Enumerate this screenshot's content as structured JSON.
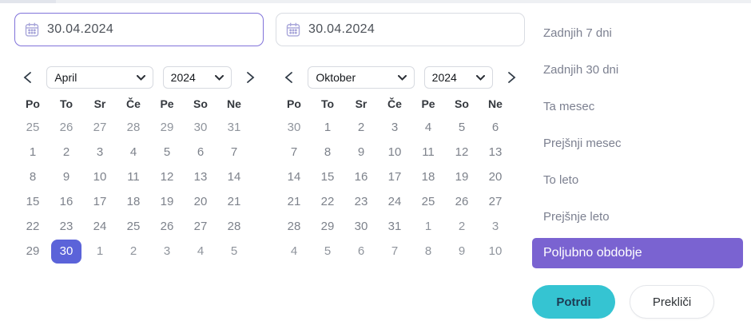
{
  "date_inputs": {
    "start": {
      "value": "30.04.2024",
      "focused": true
    },
    "end": {
      "value": "30.04.2024",
      "focused": false
    }
  },
  "calendars": [
    {
      "month": "April",
      "year": "2024",
      "weekdays": [
        "Po",
        "To",
        "Sr",
        "Če",
        "Pe",
        "So",
        "Ne"
      ],
      "weeks": [
        [
          {
            "d": "25",
            "out": true
          },
          {
            "d": "26",
            "out": true
          },
          {
            "d": "27",
            "out": true
          },
          {
            "d": "28",
            "out": true
          },
          {
            "d": "29",
            "out": true
          },
          {
            "d": "30",
            "out": true
          },
          {
            "d": "31",
            "out": true
          }
        ],
        [
          {
            "d": "1"
          },
          {
            "d": "2"
          },
          {
            "d": "3"
          },
          {
            "d": "4"
          },
          {
            "d": "5"
          },
          {
            "d": "6"
          },
          {
            "d": "7"
          }
        ],
        [
          {
            "d": "8"
          },
          {
            "d": "9"
          },
          {
            "d": "10"
          },
          {
            "d": "11"
          },
          {
            "d": "12"
          },
          {
            "d": "13"
          },
          {
            "d": "14"
          }
        ],
        [
          {
            "d": "15"
          },
          {
            "d": "16"
          },
          {
            "d": "17"
          },
          {
            "d": "18"
          },
          {
            "d": "19"
          },
          {
            "d": "20"
          },
          {
            "d": "21"
          }
        ],
        [
          {
            "d": "22"
          },
          {
            "d": "23"
          },
          {
            "d": "24"
          },
          {
            "d": "25"
          },
          {
            "d": "26"
          },
          {
            "d": "27"
          },
          {
            "d": "28"
          }
        ],
        [
          {
            "d": "29"
          },
          {
            "d": "30",
            "selected": true
          },
          {
            "d": "1",
            "out": true
          },
          {
            "d": "2",
            "out": true
          },
          {
            "d": "3",
            "out": true
          },
          {
            "d": "4",
            "out": true
          },
          {
            "d": "5",
            "out": true
          }
        ]
      ]
    },
    {
      "month": "Oktober",
      "year": "2024",
      "weekdays": [
        "Po",
        "To",
        "Sr",
        "Če",
        "Pe",
        "So",
        "Ne"
      ],
      "weeks": [
        [
          {
            "d": "30",
            "out": true
          },
          {
            "d": "1"
          },
          {
            "d": "2"
          },
          {
            "d": "3"
          },
          {
            "d": "4"
          },
          {
            "d": "5"
          },
          {
            "d": "6"
          }
        ],
        [
          {
            "d": "7"
          },
          {
            "d": "8"
          },
          {
            "d": "9"
          },
          {
            "d": "10"
          },
          {
            "d": "11"
          },
          {
            "d": "12"
          },
          {
            "d": "13"
          }
        ],
        [
          {
            "d": "14"
          },
          {
            "d": "15"
          },
          {
            "d": "16"
          },
          {
            "d": "17"
          },
          {
            "d": "18"
          },
          {
            "d": "19"
          },
          {
            "d": "20"
          }
        ],
        [
          {
            "d": "21"
          },
          {
            "d": "22"
          },
          {
            "d": "23"
          },
          {
            "d": "24"
          },
          {
            "d": "25"
          },
          {
            "d": "26"
          },
          {
            "d": "27"
          }
        ],
        [
          {
            "d": "28"
          },
          {
            "d": "29"
          },
          {
            "d": "30"
          },
          {
            "d": "31"
          },
          {
            "d": "1",
            "out": true
          },
          {
            "d": "2",
            "out": true
          },
          {
            "d": "3",
            "out": true
          }
        ],
        [
          {
            "d": "4",
            "out": true
          },
          {
            "d": "5",
            "out": true
          },
          {
            "d": "6",
            "out": true
          },
          {
            "d": "7",
            "out": true
          },
          {
            "d": "8",
            "out": true
          },
          {
            "d": "9",
            "out": true
          },
          {
            "d": "10",
            "out": true
          }
        ]
      ]
    }
  ],
  "presets": [
    {
      "label": "Zadnjih 7 dni",
      "active": false
    },
    {
      "label": "Zadnjih 30 dni",
      "active": false
    },
    {
      "label": "Ta mesec",
      "active": false
    },
    {
      "label": "Prejšnji mesec",
      "active": false
    },
    {
      "label": "To leto",
      "active": false
    },
    {
      "label": "Prejšnje leto",
      "active": false
    },
    {
      "label": "Poljubno obdobje",
      "active": true
    }
  ],
  "actions": {
    "confirm": "Potrdi",
    "cancel": "Prekliči"
  },
  "icons": {
    "date_input": "calendar-icon",
    "nav_prev": "chevron-left-icon",
    "nav_next": "chevron-right-icon",
    "select": "chevron-down-icon"
  },
  "colors": {
    "selected_day": "#5b63d9",
    "active_preset": "#7a63d1",
    "confirm_teal": "#35c4d2",
    "focused_input_border": "#8173da"
  }
}
